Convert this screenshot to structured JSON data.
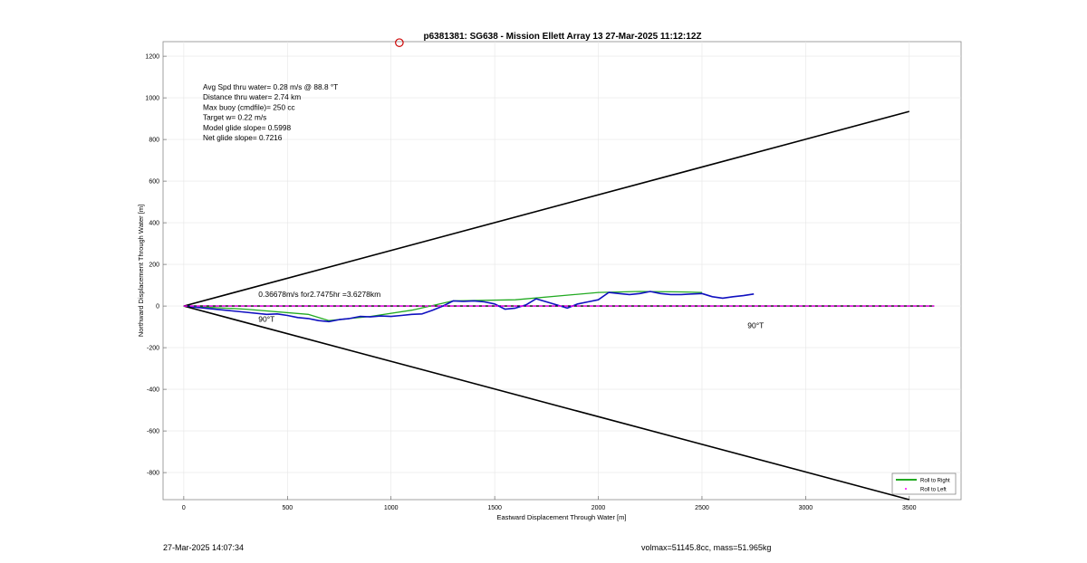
{
  "chart_data": {
    "type": "line",
    "title": "p6381381: SG638 - Mission Ellett Array 13 27-Mar-2025 11:12:12Z",
    "xlabel": "Eastward Displacement Through Water [m]",
    "ylabel": "Northward Displacement Through Water [m]",
    "xlim": [
      -100,
      3750
    ],
    "ylim": [
      -930,
      1270
    ],
    "xticks": [
      0,
      500,
      1000,
      1500,
      2000,
      2500,
      3000,
      3500
    ],
    "yticks": [
      -800,
      -600,
      -400,
      -200,
      0,
      200,
      400,
      600,
      800,
      1000,
      1200
    ],
    "grid": true,
    "legend_position": "bottom-right",
    "legend": [
      {
        "label": "Roll to Right",
        "color": "#22aa22",
        "style": "line"
      },
      {
        "label": "Roll to Left",
        "color": "#ff00ff",
        "style": "marker"
      }
    ],
    "stats": [
      "Avg Spd thru water=  0.28 m/s @  88.8 °T",
      "Distance thru water=  2.74 km",
      "Max buoy (cmdfile)= 250 cc",
      "Target w= 0.22 m/s",
      "Model glide slope= 0.5998",
      "Net glide slope= 0.7216"
    ],
    "annotations": {
      "current": "0.36678m/s for2.7475hr =3.6278km",
      "heading_left": "90°T",
      "heading_right": "90°T"
    },
    "series": [
      {
        "name": "Roll to Right",
        "color": "#22aa22",
        "x": [
          0,
          300,
          600,
          700,
          900,
          1100,
          1300,
          1600,
          2000,
          2200,
          2400,
          2500
        ],
        "y": [
          0,
          -15,
          -40,
          -70,
          -50,
          -20,
          25,
          30,
          65,
          70,
          68,
          65
        ]
      },
      {
        "name": "track",
        "color": "#1010c0",
        "x": [
          0,
          100,
          200,
          300,
          400,
          450,
          500,
          550,
          600,
          650,
          700,
          750,
          800,
          850,
          900,
          950,
          1000,
          1050,
          1100,
          1150,
          1200,
          1250,
          1300,
          1350,
          1400,
          1450,
          1500,
          1550,
          1600,
          1650,
          1700,
          1750,
          1800,
          1850,
          1900,
          1950,
          2000,
          2050,
          2100,
          2150,
          2200,
          2250,
          2300,
          2350,
          2400,
          2450,
          2500,
          2550,
          2600,
          2650,
          2700,
          2750
        ],
        "y": [
          0,
          -10,
          -20,
          -30,
          -40,
          -38,
          -45,
          -55,
          -60,
          -70,
          -75,
          -65,
          -60,
          -50,
          -52,
          -48,
          -50,
          -45,
          -40,
          -38,
          -20,
          0,
          25,
          22,
          25,
          20,
          10,
          -15,
          -10,
          5,
          35,
          20,
          5,
          -10,
          10,
          20,
          30,
          65,
          60,
          55,
          60,
          70,
          60,
          55,
          55,
          58,
          60,
          45,
          38,
          45,
          50,
          58
        ]
      },
      {
        "name": "cone-upper",
        "color": "#000000",
        "x": [
          0,
          3500
        ],
        "y": [
          0,
          935
        ]
      },
      {
        "name": "cone-lower",
        "color": "#000000",
        "x": [
          0,
          3500
        ],
        "y": [
          0,
          -930
        ]
      },
      {
        "name": "Roll to Left",
        "color": "#ff00ff",
        "x": [
          0,
          3620
        ],
        "y": [
          0,
          0
        ]
      }
    ],
    "marker": {
      "x": 1040,
      "y": 1265
    }
  },
  "footer": {
    "left": "27-Mar-2025 14:07:34",
    "right": "volmax=51145.8cc, mass=51.965kg"
  }
}
